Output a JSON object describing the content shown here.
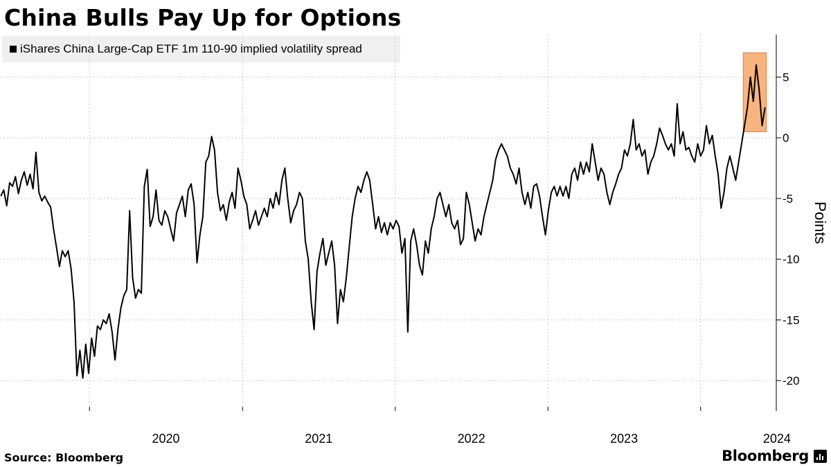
{
  "title": "China Bulls Pay Up for Options",
  "source": "Source: Bloomberg",
  "brand": "Bloomberg",
  "brand_icon": "bar-chart-icon",
  "colors": {
    "line": "#000000",
    "highlight_fill": "#f8b47e",
    "highlight_stroke": "#e8762e",
    "grid": "#c8c8c8",
    "legend_bg": "#f0f0f0"
  },
  "chart_data": {
    "type": "line",
    "series": [
      {
        "name": "iShares China Large-Cap ETF 1m 110-90 implied volatility spread",
        "points": [
          [
            "2019-06-03",
            -4.8
          ],
          [
            "2019-06-10",
            -4.3
          ],
          [
            "2019-06-17",
            -5.6
          ],
          [
            "2019-06-24",
            -3.7
          ],
          [
            "2019-07-01",
            -4.0
          ],
          [
            "2019-07-08",
            -3.2
          ],
          [
            "2019-07-15",
            -4.6
          ],
          [
            "2019-07-22",
            -3.5
          ],
          [
            "2019-07-29",
            -2.8
          ],
          [
            "2019-08-05",
            -3.9
          ],
          [
            "2019-08-12",
            -3.0
          ],
          [
            "2019-08-19",
            -4.2
          ],
          [
            "2019-08-26",
            -1.2
          ],
          [
            "2019-09-02",
            -4.5
          ],
          [
            "2019-09-09",
            -5.2
          ],
          [
            "2019-09-16",
            -4.8
          ],
          [
            "2019-09-23",
            -5.3
          ],
          [
            "2019-09-30",
            -5.7
          ],
          [
            "2019-10-07",
            -7.5
          ],
          [
            "2019-10-14",
            -9.0
          ],
          [
            "2019-10-21",
            -10.6
          ],
          [
            "2019-10-28",
            -9.3
          ],
          [
            "2019-11-04",
            -9.8
          ],
          [
            "2019-11-11",
            -9.3
          ],
          [
            "2019-11-18",
            -10.8
          ],
          [
            "2019-11-25",
            -13.5
          ],
          [
            "2019-12-02",
            -19.6
          ],
          [
            "2019-12-09",
            -17.5
          ],
          [
            "2019-12-16",
            -19.8
          ],
          [
            "2019-12-23",
            -17.0
          ],
          [
            "2019-12-30",
            -19.4
          ],
          [
            "2020-01-06",
            -16.5
          ],
          [
            "2020-01-13",
            -18.0
          ],
          [
            "2020-01-20",
            -15.5
          ],
          [
            "2020-01-27",
            -15.8
          ],
          [
            "2020-02-03",
            -15.0
          ],
          [
            "2020-02-10",
            -15.3
          ],
          [
            "2020-02-17",
            -14.5
          ],
          [
            "2020-02-24",
            -16.0
          ],
          [
            "2020-03-02",
            -18.3
          ],
          [
            "2020-03-09",
            -15.8
          ],
          [
            "2020-03-16",
            -14.0
          ],
          [
            "2020-03-23",
            -13.0
          ],
          [
            "2020-03-30",
            -12.5
          ],
          [
            "2020-04-06",
            -6.0
          ],
          [
            "2020-04-13",
            -11.5
          ],
          [
            "2020-04-20",
            -13.2
          ],
          [
            "2020-04-27",
            -12.5
          ],
          [
            "2020-05-04",
            -12.8
          ],
          [
            "2020-05-11",
            -4.0
          ],
          [
            "2020-05-18",
            -2.6
          ],
          [
            "2020-05-25",
            -7.3
          ],
          [
            "2020-06-01",
            -6.5
          ],
          [
            "2020-06-08",
            -4.3
          ],
          [
            "2020-06-15",
            -6.8
          ],
          [
            "2020-06-22",
            -7.2
          ],
          [
            "2020-06-29",
            -6.0
          ],
          [
            "2020-07-06",
            -6.5
          ],
          [
            "2020-07-13",
            -7.5
          ],
          [
            "2020-07-20",
            -8.5
          ],
          [
            "2020-07-27",
            -6.2
          ],
          [
            "2020-08-03",
            -5.5
          ],
          [
            "2020-08-10",
            -4.8
          ],
          [
            "2020-08-17",
            -6.5
          ],
          [
            "2020-08-24",
            -4.3
          ],
          [
            "2020-08-31",
            -3.8
          ],
          [
            "2020-09-07",
            -5.5
          ],
          [
            "2020-09-14",
            -10.3
          ],
          [
            "2020-09-21",
            -8.0
          ],
          [
            "2020-09-28",
            -6.5
          ],
          [
            "2020-10-05",
            -2.0
          ],
          [
            "2020-10-12",
            -1.5
          ],
          [
            "2020-10-19",
            0.1
          ],
          [
            "2020-10-26",
            -1.0
          ],
          [
            "2020-11-02",
            -4.5
          ],
          [
            "2020-11-09",
            -6.0
          ],
          [
            "2020-11-16",
            -5.5
          ],
          [
            "2020-11-23",
            -6.8
          ],
          [
            "2020-11-30",
            -5.3
          ],
          [
            "2020-12-07",
            -4.5
          ],
          [
            "2020-12-14",
            -5.8
          ],
          [
            "2020-12-21",
            -2.5
          ],
          [
            "2020-12-28",
            -3.5
          ],
          [
            "2021-01-04",
            -4.8
          ],
          [
            "2021-01-11",
            -5.5
          ],
          [
            "2021-01-18",
            -7.5
          ],
          [
            "2021-01-25",
            -6.8
          ],
          [
            "2021-02-01",
            -6.0
          ],
          [
            "2021-02-08",
            -7.2
          ],
          [
            "2021-02-15",
            -6.5
          ],
          [
            "2021-02-22",
            -5.8
          ],
          [
            "2021-03-01",
            -6.5
          ],
          [
            "2021-03-08",
            -5.0
          ],
          [
            "2021-03-15",
            -5.8
          ],
          [
            "2021-03-22",
            -4.5
          ],
          [
            "2021-03-29",
            -5.5
          ],
          [
            "2021-04-05",
            -3.5
          ],
          [
            "2021-04-12",
            -2.5
          ],
          [
            "2021-04-19",
            -5.0
          ],
          [
            "2021-04-26",
            -7.0
          ],
          [
            "2021-05-03",
            -6.0
          ],
          [
            "2021-05-10",
            -5.5
          ],
          [
            "2021-05-17",
            -4.5
          ],
          [
            "2021-05-24",
            -5.0
          ],
          [
            "2021-05-31",
            -8.5
          ],
          [
            "2021-06-07",
            -10.0
          ],
          [
            "2021-06-14",
            -13.5
          ],
          [
            "2021-06-21",
            -15.8
          ],
          [
            "2021-06-28",
            -11.0
          ],
          [
            "2021-07-05",
            -9.5
          ],
          [
            "2021-07-12",
            -8.3
          ],
          [
            "2021-07-19",
            -10.5
          ],
          [
            "2021-07-26",
            -9.5
          ],
          [
            "2021-08-02",
            -8.5
          ],
          [
            "2021-08-09",
            -10.5
          ],
          [
            "2021-08-16",
            -15.3
          ],
          [
            "2021-08-23",
            -12.5
          ],
          [
            "2021-08-30",
            -13.5
          ],
          [
            "2021-09-06",
            -11.5
          ],
          [
            "2021-09-13",
            -9.0
          ],
          [
            "2021-09-20",
            -6.5
          ],
          [
            "2021-09-27",
            -5.0
          ],
          [
            "2021-10-04",
            -4.0
          ],
          [
            "2021-10-11",
            -4.5
          ],
          [
            "2021-10-18",
            -3.5
          ],
          [
            "2021-10-25",
            -2.8
          ],
          [
            "2021-11-01",
            -3.5
          ],
          [
            "2021-11-08",
            -5.5
          ],
          [
            "2021-11-15",
            -7.5
          ],
          [
            "2021-11-22",
            -6.5
          ],
          [
            "2021-11-29",
            -7.8
          ],
          [
            "2021-12-06",
            -7.0
          ],
          [
            "2021-12-13",
            -8.0
          ],
          [
            "2021-12-20",
            -7.0
          ],
          [
            "2021-12-27",
            -7.5
          ],
          [
            "2022-01-03",
            -6.8
          ],
          [
            "2022-01-10",
            -7.3
          ],
          [
            "2022-01-17",
            -9.5
          ],
          [
            "2022-01-24",
            -8.3
          ],
          [
            "2022-01-31",
            -16.0
          ],
          [
            "2022-02-07",
            -8.5
          ],
          [
            "2022-02-14",
            -7.5
          ],
          [
            "2022-02-21",
            -8.8
          ],
          [
            "2022-02-28",
            -10.5
          ],
          [
            "2022-03-07",
            -11.3
          ],
          [
            "2022-03-14",
            -8.5
          ],
          [
            "2022-03-21",
            -9.5
          ],
          [
            "2022-03-28",
            -7.5
          ],
          [
            "2022-04-04",
            -6.5
          ],
          [
            "2022-04-11",
            -5.0
          ],
          [
            "2022-04-18",
            -4.5
          ],
          [
            "2022-04-25",
            -5.5
          ],
          [
            "2022-05-02",
            -6.5
          ],
          [
            "2022-05-09",
            -5.5
          ],
          [
            "2022-05-16",
            -7.0
          ],
          [
            "2022-05-23",
            -7.5
          ],
          [
            "2022-05-30",
            -6.8
          ],
          [
            "2022-06-06",
            -8.8
          ],
          [
            "2022-06-13",
            -8.3
          ],
          [
            "2022-06-20",
            -4.5
          ],
          [
            "2022-06-27",
            -5.5
          ],
          [
            "2022-07-04",
            -7.0
          ],
          [
            "2022-07-11",
            -8.5
          ],
          [
            "2022-07-18",
            -7.5
          ],
          [
            "2022-07-25",
            -8.0
          ],
          [
            "2022-08-01",
            -6.5
          ],
          [
            "2022-08-08",
            -5.5
          ],
          [
            "2022-08-15",
            -4.5
          ],
          [
            "2022-08-22",
            -3.5
          ],
          [
            "2022-08-29",
            -1.8
          ],
          [
            "2022-09-05",
            -1.0
          ],
          [
            "2022-09-12",
            -0.5
          ],
          [
            "2022-09-19",
            -1.0
          ],
          [
            "2022-09-26",
            -1.5
          ],
          [
            "2022-10-03",
            -2.5
          ],
          [
            "2022-10-10",
            -3.0
          ],
          [
            "2022-10-17",
            -3.8
          ],
          [
            "2022-10-24",
            -2.5
          ],
          [
            "2022-10-31",
            -4.5
          ],
          [
            "2022-11-07",
            -5.5
          ],
          [
            "2022-11-14",
            -4.5
          ],
          [
            "2022-11-21",
            -5.8
          ],
          [
            "2022-11-28",
            -4.0
          ],
          [
            "2022-12-05",
            -3.8
          ],
          [
            "2022-12-12",
            -4.8
          ],
          [
            "2022-12-19",
            -6.5
          ],
          [
            "2022-12-26",
            -8.0
          ],
          [
            "2023-01-02",
            -6.0
          ],
          [
            "2023-01-09",
            -4.5
          ],
          [
            "2023-01-16",
            -4.0
          ],
          [
            "2023-01-23",
            -4.8
          ],
          [
            "2023-01-30",
            -4.0
          ],
          [
            "2023-02-06",
            -4.8
          ],
          [
            "2023-02-13",
            -4.0
          ],
          [
            "2023-02-20",
            -5.0
          ],
          [
            "2023-02-27",
            -3.0
          ],
          [
            "2023-03-06",
            -2.5
          ],
          [
            "2023-03-13",
            -3.5
          ],
          [
            "2023-03-20",
            -2.0
          ],
          [
            "2023-03-27",
            -3.0
          ],
          [
            "2023-04-03",
            -2.0
          ],
          [
            "2023-04-10",
            -2.8
          ],
          [
            "2023-04-17",
            -0.5
          ],
          [
            "2023-04-24",
            -2.0
          ],
          [
            "2023-05-01",
            -3.5
          ],
          [
            "2023-05-08",
            -2.5
          ],
          [
            "2023-05-15",
            -3.0
          ],
          [
            "2023-05-22",
            -4.5
          ],
          [
            "2023-05-29",
            -5.5
          ],
          [
            "2023-06-05",
            -4.5
          ],
          [
            "2023-06-12",
            -3.8
          ],
          [
            "2023-06-19",
            -3.0
          ],
          [
            "2023-06-26",
            -2.5
          ],
          [
            "2023-07-03",
            -1.0
          ],
          [
            "2023-07-10",
            -1.5
          ],
          [
            "2023-07-17",
            -0.5
          ],
          [
            "2023-07-24",
            1.5
          ],
          [
            "2023-07-31",
            -1.0
          ],
          [
            "2023-08-07",
            -0.5
          ],
          [
            "2023-08-14",
            -1.5
          ],
          [
            "2023-08-21",
            -1.0
          ],
          [
            "2023-08-28",
            -3.0
          ],
          [
            "2023-09-04",
            -2.0
          ],
          [
            "2023-09-11",
            -1.5
          ],
          [
            "2023-09-18",
            -0.5
          ],
          [
            "2023-09-25",
            0.8
          ],
          [
            "2023-10-02",
            0.2
          ],
          [
            "2023-10-09",
            -0.5
          ],
          [
            "2023-10-16",
            -1.0
          ],
          [
            "2023-10-23",
            -0.5
          ],
          [
            "2023-10-30",
            -1.5
          ],
          [
            "2023-11-06",
            2.8
          ],
          [
            "2023-11-13",
            -0.5
          ],
          [
            "2023-11-20",
            0.5
          ],
          [
            "2023-11-27",
            -1.0
          ],
          [
            "2023-12-04",
            -0.8
          ],
          [
            "2023-12-11",
            -1.5
          ],
          [
            "2023-12-18",
            -2.0
          ],
          [
            "2023-12-25",
            -0.5
          ],
          [
            "2024-01-01",
            -1.5
          ],
          [
            "2024-01-08",
            -1.0
          ],
          [
            "2024-01-15",
            1.0
          ],
          [
            "2024-01-22",
            -0.5
          ],
          [
            "2024-01-29",
            0.2
          ],
          [
            "2024-02-05",
            -1.5
          ],
          [
            "2024-02-12",
            -3.0
          ],
          [
            "2024-02-19",
            -5.8
          ],
          [
            "2024-02-26",
            -4.5
          ],
          [
            "2024-03-04",
            -2.5
          ],
          [
            "2024-03-11",
            -1.5
          ],
          [
            "2024-03-18",
            -2.5
          ],
          [
            "2024-03-25",
            -3.5
          ],
          [
            "2024-04-01",
            -2.0
          ],
          [
            "2024-04-08",
            -0.5
          ],
          [
            "2024-04-15",
            1.0
          ],
          [
            "2024-04-22",
            2.5
          ],
          [
            "2024-04-29",
            5.0
          ],
          [
            "2024-05-06",
            3.0
          ],
          [
            "2024-05-13",
            6.0
          ],
          [
            "2024-05-20",
            4.0
          ],
          [
            "2024-05-27",
            1.0
          ],
          [
            "2024-06-03",
            2.5
          ]
        ]
      }
    ],
    "xaxis": {
      "type": "date",
      "range": [
        "2019-06-01",
        "2024-06-30"
      ],
      "ticks": [
        "2020",
        "2021",
        "2022",
        "2023",
        "2024"
      ]
    },
    "yaxis": {
      "label": "Points",
      "range": [
        -22.5,
        8.5
      ],
      "ticks": [
        5,
        0,
        -5,
        -10,
        -15,
        -20
      ],
      "tick_labels": [
        "5",
        "0",
        "-5",
        "-10",
        "-15",
        "-20"
      ],
      "position": "right"
    },
    "grid": "horizontal dotted",
    "legend_position": "top-left",
    "highlight": {
      "x_range": [
        "2024-04-12",
        "2024-06-06"
      ],
      "y_range": [
        0.5,
        7.0
      ]
    }
  }
}
